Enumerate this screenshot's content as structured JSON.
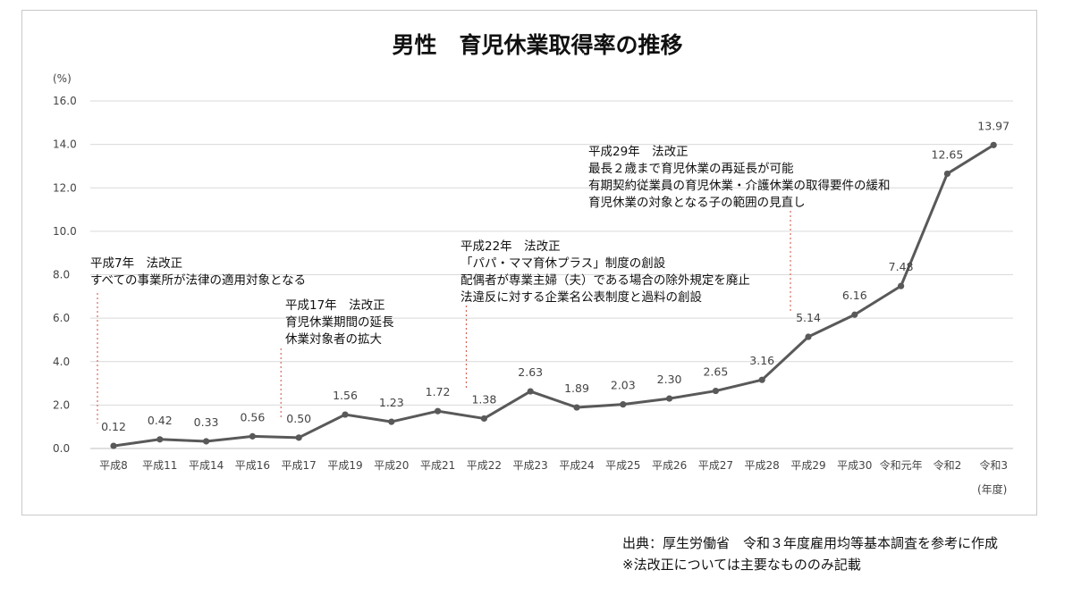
{
  "chart_data": {
    "type": "line",
    "title": "男性　育児休業取得率の推移",
    "ylabel": "(%)",
    "xlabel": "(年度)",
    "ylim": [
      0,
      16
    ],
    "yticks": [
      "0.0",
      "2.0",
      "4.0",
      "6.0",
      "8.0",
      "10.0",
      "12.0",
      "14.0",
      "16.0"
    ],
    "grid": true,
    "categories": [
      "平成8",
      "平成11",
      "平成14",
      "平成16",
      "平成17",
      "平成19",
      "平成20",
      "平成21",
      "平成22",
      "平成23",
      "平成24",
      "平成25",
      "平成26",
      "平成27",
      "平成28",
      "平成29",
      "平成30",
      "令和元年",
      "令和2",
      "令和3"
    ],
    "values": [
      0.12,
      0.42,
      0.33,
      0.56,
      0.5,
      1.56,
      1.23,
      1.72,
      1.38,
      2.63,
      1.89,
      2.03,
      2.3,
      2.65,
      3.16,
      5.14,
      6.16,
      7.48,
      12.65,
      13.97
    ],
    "labels": [
      "0.12",
      "0.42",
      "0.33",
      "0.56",
      "0.50",
      "1.56",
      "1.23",
      "1.72",
      "1.38",
      "2.63",
      "1.89",
      "2.03",
      "2.30",
      "2.65",
      "3.16",
      "5.14",
      "6.16",
      "7.48",
      "12.65",
      "13.97"
    ],
    "series_color": "#595959",
    "annotation_line_color": "#d04a3a",
    "annotations": [
      {
        "category_index": 0,
        "lines": [
          "平成7年　法改正",
          "すべての事業所が法律の適用対象となる"
        ]
      },
      {
        "category_index": 4,
        "lines": [
          "平成17年　法改正",
          "育児休業期間の延長",
          "休業対象者の拡大"
        ]
      },
      {
        "category_index": 8,
        "lines": [
          "平成22年　法改正",
          "「パパ・ママ育休プラス」制度の創設",
          "配偶者が専業主婦（夫）である場合の除外規定を廃止",
          "法違反に対する企業名公表制度と過料の創設"
        ]
      },
      {
        "category_index": 15,
        "lines": [
          "平成29年　法改正",
          "最長２歳まで育児休業の再延長が可能",
          "有期契約従業員の育児休業・介護休業の取得要件の緩和",
          "育児休業の対象となる子の範囲の見直し"
        ]
      }
    ]
  },
  "source": {
    "line1": "出典：厚生労働省　令和３年度雇用均等基本調査を参考に作成",
    "line2": "※法改正については主要なもののみ記載"
  }
}
